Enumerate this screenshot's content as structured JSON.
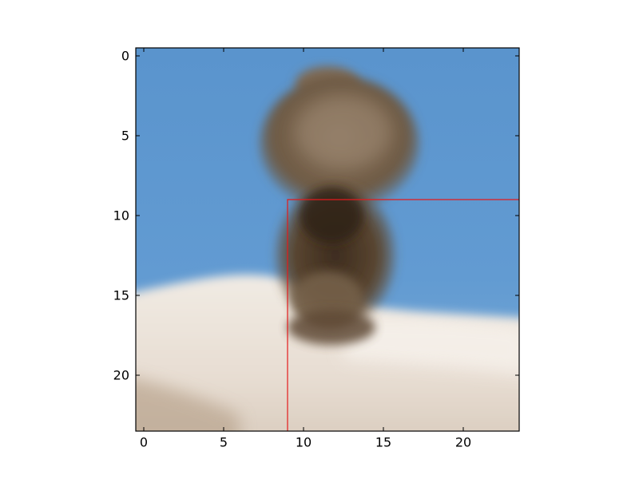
{
  "chart_data": {
    "type": "heatmap",
    "title": "",
    "xlabel": "",
    "ylabel": "",
    "image": {
      "description": "bird",
      "rows": 24,
      "cols": 24
    },
    "xlim": [
      -0.5,
      23.5
    ],
    "ylim": [
      23.5,
      -0.5
    ],
    "y_inverted": true,
    "grid": false,
    "xticks": [
      0,
      5,
      10,
      15,
      20
    ],
    "yticks": [
      0,
      5,
      10,
      15,
      20
    ],
    "xtick_labels": [
      "0",
      "5",
      "10",
      "15",
      "20"
    ],
    "ytick_labels": [
      "0",
      "5",
      "10",
      "15",
      "20"
    ],
    "overlay_box": {
      "x_start": 9,
      "y_start": 9,
      "x_end": 23.5,
      "y_end": 23.5,
      "color": "#e41a1c"
    },
    "colors": {
      "sky": "#5d97cf",
      "snow": "#ece4db",
      "bird_body": "#7a6650",
      "bird_dark": "#3f2f20"
    }
  }
}
